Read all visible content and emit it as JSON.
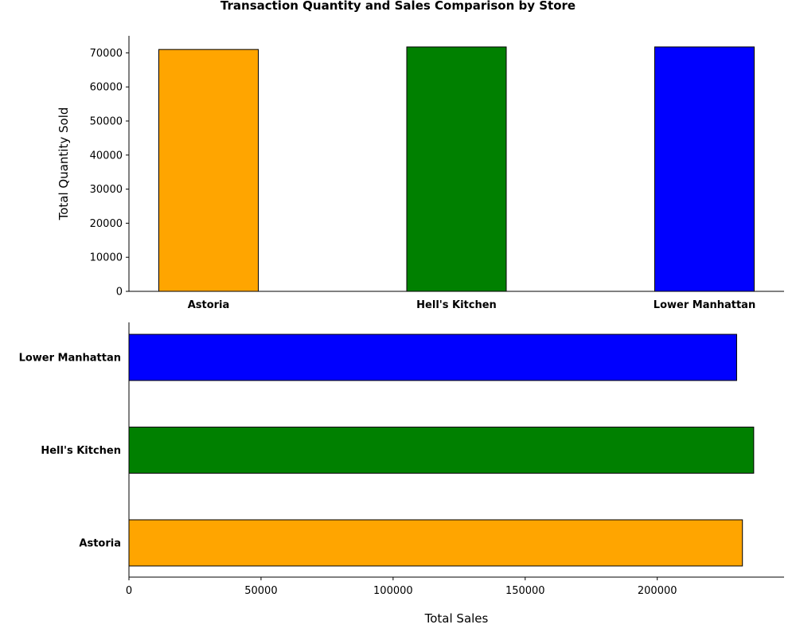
{
  "title": "Transaction Quantity and Sales Comparison by Store",
  "chart_data": [
    {
      "type": "bar",
      "orientation": "vertical",
      "categories": [
        "Astoria",
        "Hell's Kitchen",
        "Lower Manhattan"
      ],
      "values": [
        70991,
        71737,
        71742
      ],
      "colors": [
        "#ffa500",
        "#008000",
        "#0000ff"
      ],
      "edge_color": "#000000",
      "ylabel": "Total Quantity Sold",
      "xlabel": "",
      "ylim": [
        0,
        75000
      ],
      "yticks": [
        0,
        10000,
        20000,
        30000,
        40000,
        50000,
        60000,
        70000
      ],
      "grid": false
    },
    {
      "type": "bar",
      "orientation": "horizontal",
      "categories": [
        "Astoria",
        "Hell's Kitchen",
        "Lower Manhattan"
      ],
      "values": [
        232243.91,
        236511.17,
        230057.25
      ],
      "colors": [
        "#ffa500",
        "#008000",
        "#0000ff"
      ],
      "edge_color": "#000000",
      "xlabel": "Total Sales",
      "ylabel": "",
      "xlim": [
        0,
        248000
      ],
      "xticks": [
        0,
        50000,
        100000,
        150000,
        200000
      ],
      "grid": false
    }
  ]
}
